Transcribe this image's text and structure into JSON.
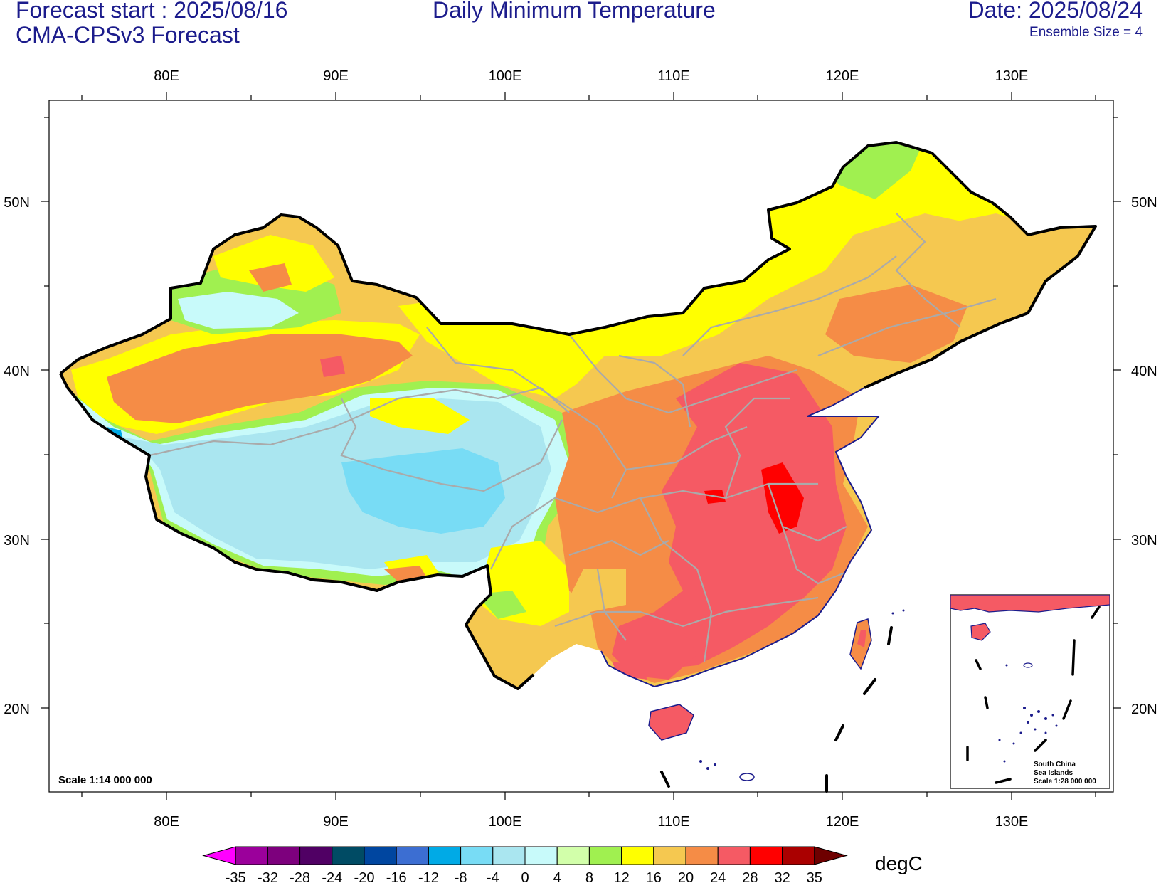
{
  "header": {
    "forecast_start": "Forecast start : 2025/08/16",
    "model": "CMA-CPSv3 Forecast",
    "title": "Daily Minimum Temperature",
    "date": "Date: 2025/08/24",
    "ensemble": "Ensemble Size = 4"
  },
  "map": {
    "lon_labels": [
      "80E",
      "90E",
      "100E",
      "110E",
      "120E",
      "130E"
    ],
    "lat_labels": [
      "50N",
      "40N",
      "30N",
      "20N"
    ],
    "scale_note": "Scale 1:14 000 000",
    "inset": {
      "line1": "South China",
      "line2": "Sea Islands",
      "line3": "Scale 1:28 000 000"
    }
  },
  "colorbar": {
    "unit": "degC",
    "labels": [
      "-35",
      "-32",
      "-28",
      "-24",
      "-20",
      "-16",
      "-12",
      "-8",
      "-4",
      "0",
      "4",
      "8",
      "12",
      "16",
      "20",
      "24",
      "28",
      "32",
      "35"
    ],
    "colors": [
      "#ff00ff",
      "#9b009b",
      "#7d007d",
      "#500064",
      "#004b64",
      "#0046a0",
      "#3c6ed2",
      "#00aae6",
      "#78dcf5",
      "#aae6f0",
      "#c8fafa",
      "#d2ffaa",
      "#a0f050",
      "#ffff00",
      "#f5c850",
      "#f58c46",
      "#f55a64",
      "#ff0000",
      "#aa0000",
      "#6e0000"
    ]
  },
  "legend_colors": {
    "land_frame": "#000000",
    "province_line": "#aaaaaa",
    "coast_line": "#1c1c8c"
  }
}
